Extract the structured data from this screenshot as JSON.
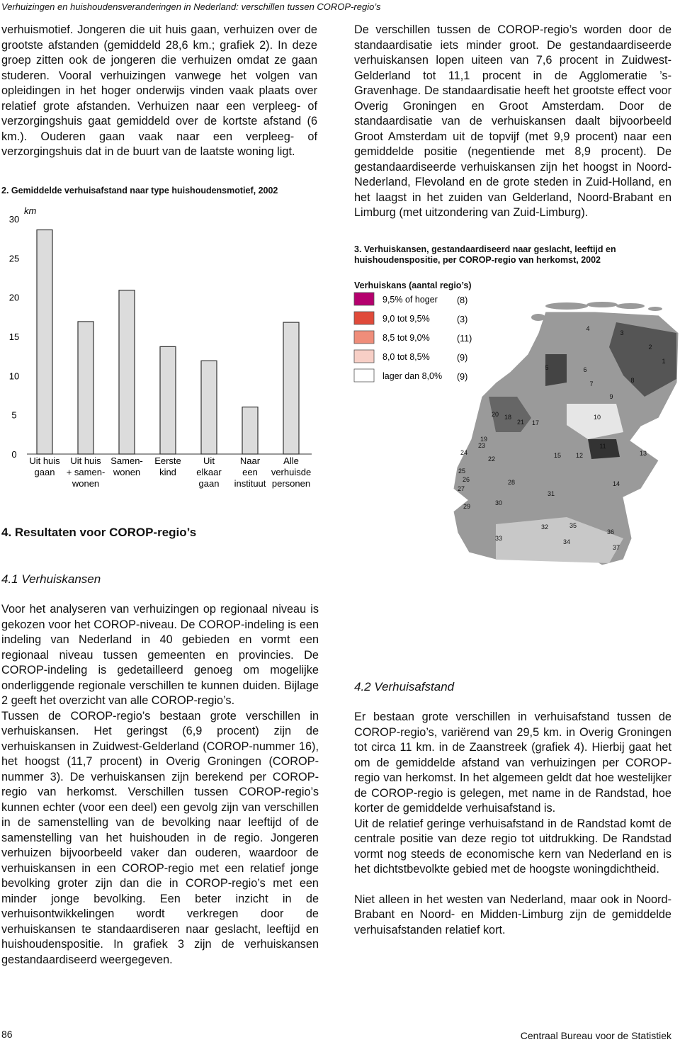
{
  "header": {
    "title": "Verhuizingen en huishoudensveranderingen in Nederland: verschillen tussen COROP-regio’s"
  },
  "left": {
    "paragraphs": [
      "verhuismotief. Jongeren die uit huis gaan, verhuizen over de grootste afstanden (gemiddeld 28,6 km.; grafiek 2). In deze groep zitten ook de jongeren die verhuizen omdat ze gaan studeren. Vooral verhuizingen vanwege het volgen van opleidingen in het hoger onderwijs vinden vaak plaats over relatief grote afstanden. Verhuizen naar een verpleeg- of verzorgingshuis gaat gemiddeld over de kortste afstand (6 km.). Ouderen gaan vaak naar een verpleeg- of verzorgingshuis dat in de buurt van de laatste woning ligt."
    ]
  },
  "chart_data": {
    "type": "bar",
    "title": "2. Gemiddelde verhuisafstand naar type huishoudensmotief, 2002",
    "y_unit": "km",
    "categories": [
      [
        "Uit huis",
        "gaan"
      ],
      [
        "Uit huis",
        "+ samen-",
        "wonen"
      ],
      [
        "Samen-",
        "wonen"
      ],
      [
        "Eerste",
        "kind"
      ],
      [
        "Uit",
        "elkaar",
        "gaan"
      ],
      [
        "Naar",
        "een",
        "instituut"
      ],
      [
        "Alle",
        "verhuisde",
        "personen"
      ]
    ],
    "values": [
      28.6,
      16.9,
      20.9,
      13.7,
      11.9,
      6.0,
      16.8
    ],
    "color": "#dcdcdc",
    "ylim": [
      0,
      30
    ],
    "yticks": [
      0,
      5,
      10,
      15,
      20,
      25,
      30
    ]
  },
  "right": {
    "paragraphs": [
      "De verschillen tussen de COROP-regio’s worden door de standaardisatie iets minder groot. De gestandaardiseerde verhuiskansen lopen uiteen van 7,6 procent in Zuidwest-Gelderland tot 11,1 procent in de Agglomeratie ’s-Gravenhage. De standaardisatie heeft het grootste effect voor Overig Groningen en Groot Amsterdam. Door de standaardisatie van de verhuiskansen daalt bijvoorbeeld Groot Amsterdam uit de topvijf (met 9,9 procent) naar een gemiddelde positie (negentiende met 8,9 procent). De gestandaardiseerde verhuiskansen zijn het hoogst in Noord-Nederland, Flevoland en de grote steden in Zuid-Holland, en het laagst in het zuiden van Gelderland, Noord-Brabant en Limburg (met uitzondering van Zuid-Limburg)."
    ]
  },
  "map": {
    "title": "3. Verhuiskansen, gestandaardiseerd naar geslacht, leeftijd en huishoudenspositie, per COROP-regio van herkomst, 2002",
    "legend_title": "Verhuiskans (aantal regio’s)",
    "classes": [
      {
        "label": "9,5% of hoger",
        "count": "(8)",
        "color": "#b5006e"
      },
      {
        "label": "9,0 tot 9,5%",
        "count": "(3)",
        "color": "#e04a3a"
      },
      {
        "label": "8,5 tot 9,0%",
        "count": "(11)",
        "color": "#ef8d7a"
      },
      {
        "label": "8,0 tot 8,5%",
        "count": "(9)",
        "color": "#f7cfc6"
      },
      {
        "label": "lager dan 8,0%",
        "count": "(9)",
        "color": "#ffffff"
      }
    ],
    "regions": [
      "1",
      "2",
      "3",
      "4",
      "5",
      "6",
      "7",
      "8",
      "9",
      "10",
      "11",
      "12",
      "13",
      "14",
      "15",
      "17",
      "18",
      "19",
      "20",
      "21",
      "22",
      "23",
      "24",
      "25",
      "26",
      "27",
      "28",
      "29",
      "30",
      "31",
      "32",
      "33",
      "34",
      "35",
      "36",
      "37"
    ]
  },
  "sections": [
    {
      "heading": "4. Resultaten voor COROP-regio’s",
      "subheading": "4.1 Verhuiskansen",
      "paragraphs": [
        "Voor het analyseren van verhuizingen op regionaal niveau is gekozen voor het COROP-niveau. De COROP-indeling is een indeling van Nederland in 40 gebieden en vormt een regionaal niveau tussen gemeenten en provincies. De COROP-indeling is gedetailleerd genoeg om mogelijke onderliggende regionale verschillen te kunnen duiden. Bijlage 2 geeft het overzicht van alle COROP-regio’s.",
        "Tussen de COROP-regio’s bestaan grote verschillen in verhuiskansen. Het geringst (6,9 procent) zijn de verhuiskansen in Zuidwest-Gelderland (COROP-nummer 16), het hoogst (11,7 procent) in Overig Groningen (COROP-nummer 3). De verhuiskansen zijn berekend per COROP-regio van herkomst. Verschillen tussen COROP-regio’s kunnen echter (voor een deel) een gevolg zijn van verschillen in de samenstelling van de bevolking naar leeftijd of de samenstelling van het huishouden in de regio. Jongeren verhuizen bijvoorbeeld vaker dan ouderen, waardoor de verhuiskansen in een COROP-regio met een relatief jonge bevolking groter zijn dan die in COROP-regio’s met een minder jonge bevolking. Een beter inzicht in de verhuisontwikkelingen wordt verkregen door de verhuiskansen te standaardiseren naar geslacht, leeftijd en huishoudenspositie. In grafiek 3 zijn de verhuiskansen gestandaardiseerd weergegeven."
      ]
    },
    {
      "subheading": "4.2 Verhuisafstand",
      "paragraphs": [
        "Er bestaan grote verschillen in verhuisafstand tussen de COROP-regio’s, variërend van 29,5 km. in Overig Groningen tot circa 11 km. in de Zaanstreek (grafiek 4). Hierbij gaat het om de gemiddelde afstand van verhuizingen per COROP-regio van herkomst. In het algemeen geldt dat hoe westelijker de COROP-regio is gelegen, met name in de Randstad, hoe korter de gemiddelde verhuisafstand is.",
        "Uit de relatief geringe verhuisafstand in de Randstad komt de centrale positie van deze regio tot uitdrukking. De Randstad vormt nog steeds de economische kern van Nederland en is het dichtstbevolkte gebied met de hoogste woningdichtheid.",
        "Niet alleen in het westen van Nederland, maar ook in Noord-Brabant en Noord- en Midden-Limburg zijn de gemiddelde verhuisafstanden relatief kort."
      ]
    }
  ],
  "footer": {
    "page": "86",
    "publisher": "Centraal Bureau voor de Statistiek"
  }
}
